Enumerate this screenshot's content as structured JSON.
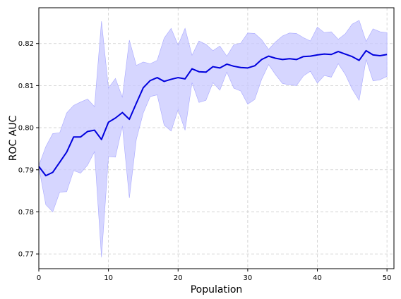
{
  "chart_data": {
    "type": "line",
    "title": "",
    "xlabel": "Population",
    "ylabel": "ROC AUC",
    "xlim": [
      0,
      51
    ],
    "ylim": [
      0.7665,
      0.8285
    ],
    "x_ticks": [
      0,
      10,
      20,
      30,
      40,
      50
    ],
    "y_ticks": [
      0.77,
      0.78,
      0.79,
      0.8,
      0.81,
      0.82
    ],
    "grid": true,
    "series": [
      {
        "line_color": "#0000dd",
        "band_color": "#c8c8ff",
        "x": [
          0,
          1,
          2,
          3,
          4,
          5,
          6,
          7,
          8,
          9,
          10,
          11,
          12,
          13,
          14,
          15,
          16,
          17,
          18,
          19,
          20,
          21,
          22,
          23,
          24,
          25,
          26,
          27,
          28,
          29,
          30,
          31,
          32,
          33,
          34,
          35,
          36,
          37,
          38,
          39,
          40,
          41,
          42,
          43,
          44,
          45,
          46,
          47,
          48,
          49,
          50
        ],
        "mean": [
          0.7908,
          0.7886,
          0.7894,
          0.7918,
          0.7942,
          0.7978,
          0.7978,
          0.7991,
          0.7994,
          0.7972,
          0.8013,
          0.8023,
          0.8036,
          0.802,
          0.8058,
          0.8095,
          0.8112,
          0.8119,
          0.811,
          0.8115,
          0.8119,
          0.8116,
          0.814,
          0.8133,
          0.8132,
          0.8145,
          0.8142,
          0.8151,
          0.8146,
          0.8143,
          0.8142,
          0.8147,
          0.8162,
          0.817,
          0.8165,
          0.8162,
          0.8164,
          0.8162,
          0.8169,
          0.817,
          0.8173,
          0.8175,
          0.8174,
          0.8181,
          0.8175,
          0.8169,
          0.816,
          0.8183,
          0.8173,
          0.8171,
          0.8174
        ],
        "upper": [
          0.791,
          0.7955,
          0.7986,
          0.7988,
          0.8035,
          0.8053,
          0.8061,
          0.8068,
          0.805,
          0.8253,
          0.8094,
          0.8117,
          0.8072,
          0.8208,
          0.8148,
          0.8156,
          0.8152,
          0.816,
          0.8213,
          0.8236,
          0.8196,
          0.8236,
          0.8172,
          0.8206,
          0.8198,
          0.8183,
          0.8194,
          0.817,
          0.8197,
          0.8201,
          0.8225,
          0.8224,
          0.8209,
          0.8186,
          0.8204,
          0.8218,
          0.8225,
          0.8224,
          0.8214,
          0.8206,
          0.8239,
          0.8226,
          0.8228,
          0.821,
          0.8223,
          0.8246,
          0.8255,
          0.8205,
          0.8235,
          0.8228,
          0.8226
        ],
        "lower": [
          0.7906,
          0.7817,
          0.78,
          0.7847,
          0.7848,
          0.7898,
          0.7892,
          0.7911,
          0.7943,
          0.7692,
          0.7931,
          0.793,
          0.8004,
          0.7833,
          0.7972,
          0.8035,
          0.8074,
          0.8078,
          0.8006,
          0.7992,
          0.8043,
          0.7994,
          0.8107,
          0.806,
          0.8065,
          0.8107,
          0.8089,
          0.8132,
          0.8094,
          0.8087,
          0.8056,
          0.8067,
          0.8115,
          0.815,
          0.8126,
          0.8105,
          0.8102,
          0.81,
          0.8123,
          0.8134,
          0.8106,
          0.8124,
          0.812,
          0.8152,
          0.8127,
          0.8092,
          0.8065,
          0.8162,
          0.8111,
          0.8114,
          0.8122
        ]
      }
    ]
  }
}
